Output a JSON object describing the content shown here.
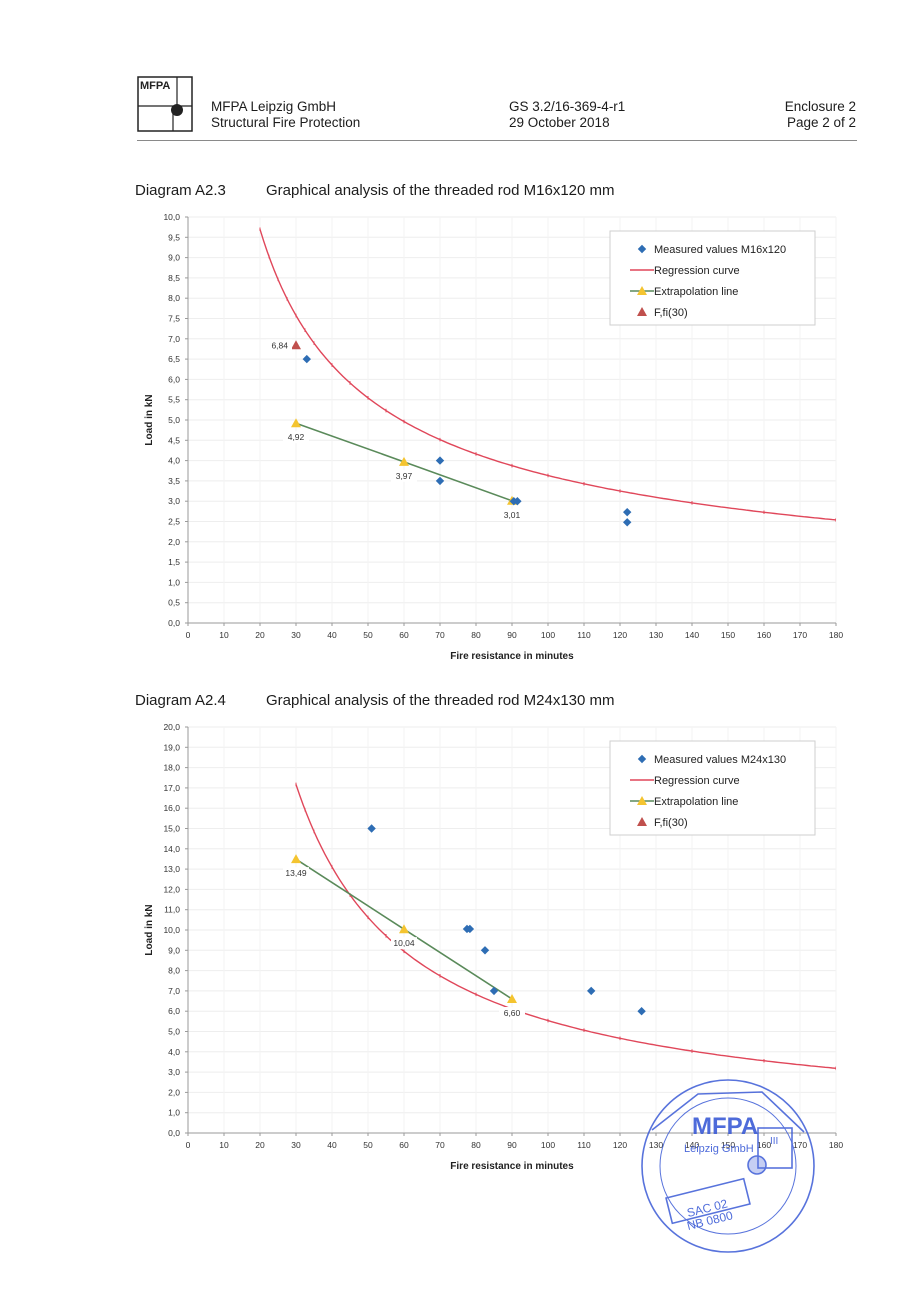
{
  "header": {
    "logo_text": "MFPA",
    "company": "MFPA Leipzig GmbH",
    "department": "Structural Fire Protection",
    "report_no": "GS 3.2/16-369-4-r1",
    "date": "29 October 2018",
    "enclosure": "Enclosure 2",
    "page": "Page 2 of 2"
  },
  "diagrams": [
    {
      "number": "Diagram A2.3",
      "title": "Graphical analysis of the threaded rod M16x120 mm"
    },
    {
      "number": "Diagram A2.4",
      "title": "Graphical analysis of the threaded rod M24x130 mm"
    }
  ],
  "chart_data": [
    {
      "type": "line",
      "title": "Graphical analysis of the threaded rod M16x120 mm",
      "xlabel": "Fire resistance in minutes",
      "ylabel": "Load in kN",
      "xlim": [
        0,
        180
      ],
      "ylim": [
        0,
        10
      ],
      "x_ticks": [
        "0",
        "10",
        "20",
        "30",
        "40",
        "50",
        "60",
        "70",
        "80",
        "90",
        "100",
        "110",
        "120",
        "130",
        "140",
        "150",
        "160",
        "170",
        "180"
      ],
      "y_ticks": [
        "0,0",
        "0,5",
        "1,0",
        "1,5",
        "2,0",
        "2,5",
        "3,0",
        "3,5",
        "4,0",
        "4,5",
        "5,0",
        "5,5",
        "6,0",
        "6,5",
        "7,0",
        "7,5",
        "8,0",
        "8,5",
        "9,0",
        "9,5",
        "10,0"
      ],
      "grid": true,
      "legend_position": "top-right",
      "regression": {
        "a": 60.3,
        "b": 0.61
      },
      "series": [
        {
          "name": "Measured values M16x120",
          "kind": "scatter",
          "color": "#2e6db4",
          "points": [
            [
              33,
              6.5
            ],
            [
              70,
              4.0
            ],
            [
              70,
              3.5
            ],
            [
              90.5,
              3.0
            ],
            [
              91.5,
              3.0
            ],
            [
              122,
              2.73
            ],
            [
              122,
              2.48
            ]
          ]
        },
        {
          "name": "Regression curve",
          "kind": "line",
          "color": "#e0475a",
          "x": [
            20,
            22.5,
            25,
            27.5,
            30,
            32.5,
            35,
            40,
            45,
            50,
            55,
            60,
            70,
            80,
            90,
            100,
            110,
            120,
            140,
            160,
            180
          ]
        },
        {
          "name": "Extrapolation line",
          "kind": "line",
          "color": "#5a8a5a",
          "points": [
            [
              30,
              4.92
            ],
            [
              60,
              3.97
            ],
            [
              90,
              3.01
            ]
          ]
        },
        {
          "name": "F,fi(30)",
          "kind": "scatter",
          "color": "#c0504d",
          "points": [
            [
              30,
              6.84
            ]
          ]
        }
      ],
      "annotations": [
        {
          "text": "6,84",
          "x": 30,
          "y": 6.84
        },
        {
          "text": "4,92",
          "x": 30,
          "y": 4.92
        },
        {
          "text": "3,97",
          "x": 60,
          "y": 3.97
        },
        {
          "text": "3,01",
          "x": 90,
          "y": 3.01
        }
      ]
    },
    {
      "type": "line",
      "title": "Graphical analysis of the threaded rod M24x130 mm",
      "xlabel": "Fire resistance in minutes",
      "ylabel": "Load in kN",
      "xlim": [
        0,
        180
      ],
      "ylim": [
        0,
        20
      ],
      "x_ticks": [
        "0",
        "10",
        "20",
        "30",
        "40",
        "50",
        "60",
        "70",
        "80",
        "90",
        "100",
        "110",
        "120",
        "130",
        "140",
        "150",
        "160",
        "170",
        "180"
      ],
      "y_ticks": [
        "0,0",
        "1,0",
        "2,0",
        "3,0",
        "4,0",
        "5,0",
        "6,0",
        "7,0",
        "8,0",
        "9,0",
        "10,0",
        "11,0",
        "12,0",
        "13,0",
        "14,0",
        "15,0",
        "16,0",
        "17,0",
        "18,0",
        "19,0",
        "20,0"
      ],
      "grid": true,
      "legend_position": "top-right",
      "regression": {
        "a": 420,
        "b": 0.94
      },
      "series": [
        {
          "name": "Measured values M24x130",
          "kind": "scatter",
          "color": "#2e6db4",
          "points": [
            [
              51,
              15.0
            ],
            [
              77.5,
              10.05
            ],
            [
              78.3,
              10.05
            ],
            [
              82.5,
              9.0
            ],
            [
              85,
              7.0
            ],
            [
              112,
              7.0
            ],
            [
              126,
              6.0
            ]
          ]
        },
        {
          "name": "Regression curve",
          "kind": "line",
          "color": "#e0475a",
          "x": [
            30,
            32.5,
            35,
            40,
            45,
            50,
            55,
            60,
            70,
            80,
            90,
            100,
            110,
            120,
            140,
            160,
            180
          ]
        },
        {
          "name": "Extrapolation line",
          "kind": "line",
          "color": "#5a8a5a",
          "points": [
            [
              30,
              13.49
            ],
            [
              60,
              10.04
            ],
            [
              90,
              6.6
            ]
          ]
        },
        {
          "name": "F,fi(30)",
          "kind": "scatter",
          "color": "#c0504d",
          "points": []
        }
      ],
      "annotations": [
        {
          "text": "13,49",
          "x": 30,
          "y": 13.49
        },
        {
          "text": "10,04",
          "x": 60,
          "y": 10.04
        },
        {
          "text": "6,60",
          "x": 90,
          "y": 6.6
        }
      ]
    }
  ],
  "stamp": {
    "line1": "MFPA",
    "line2": "Leipzig GmbH",
    "line3": "SAC 02",
    "line4": "NB 0800",
    "mark": "III",
    "color": "#3b5bd6"
  }
}
